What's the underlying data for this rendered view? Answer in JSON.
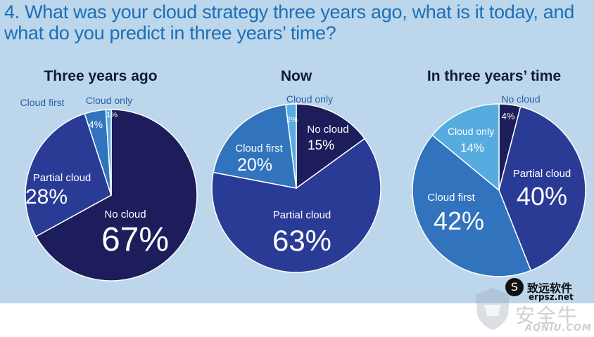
{
  "question": {
    "line1": "4. What was your cloud strategy three years ago, what is it today, and",
    "line2": "what do you predict in three years’ time?"
  },
  "colors": {
    "no_cloud": "#1c1d5a",
    "partial_cloud": "#2a3b96",
    "cloud_first": "#3273bd",
    "cloud_only": "#56acdf",
    "panel_bg": "#bcd6ec"
  },
  "chart_data": [
    {
      "type": "pie",
      "title": "Three years ago",
      "slices": [
        {
          "label": "No cloud",
          "value": 67,
          "display": "67%",
          "color": "#1c1d5a"
        },
        {
          "label": "Partial cloud",
          "value": 28,
          "display": "28%",
          "color": "#2a3b96"
        },
        {
          "label": "Cloud first",
          "value": 4,
          "display": "4%",
          "color": "#3273bd"
        },
        {
          "label": "Cloud only",
          "value": 1,
          "display": "1%",
          "color": "#56acdf"
        }
      ]
    },
    {
      "type": "pie",
      "title": "Now",
      "slices": [
        {
          "label": "No cloud",
          "value": 15,
          "display": "15%",
          "color": "#1c1d5a"
        },
        {
          "label": "Partial cloud",
          "value": 63,
          "display": "63%",
          "color": "#2a3b96"
        },
        {
          "label": "Cloud first",
          "value": 20,
          "display": "20%",
          "color": "#3273bd"
        },
        {
          "label": "Cloud only",
          "value": 2,
          "display": "2%",
          "color": "#56acdf"
        }
      ]
    },
    {
      "type": "pie",
      "title": "In three years’ time",
      "slices": [
        {
          "label": "No cloud",
          "value": 4,
          "display": "4%",
          "color": "#1c1d5a"
        },
        {
          "label": "Partial cloud",
          "value": 40,
          "display": "40%",
          "color": "#2a3b96"
        },
        {
          "label": "Cloud first",
          "value": 42,
          "display": "42%",
          "color": "#3273bd"
        },
        {
          "label": "Cloud only",
          "value": 14,
          "display": "14%",
          "color": "#56acdf"
        }
      ]
    }
  ],
  "watermarks": {
    "erp_cn": "致远软件",
    "erp_site": "erpsz.net",
    "aq_cn": "安全牛",
    "aq_site": "AQNIU.COM"
  }
}
